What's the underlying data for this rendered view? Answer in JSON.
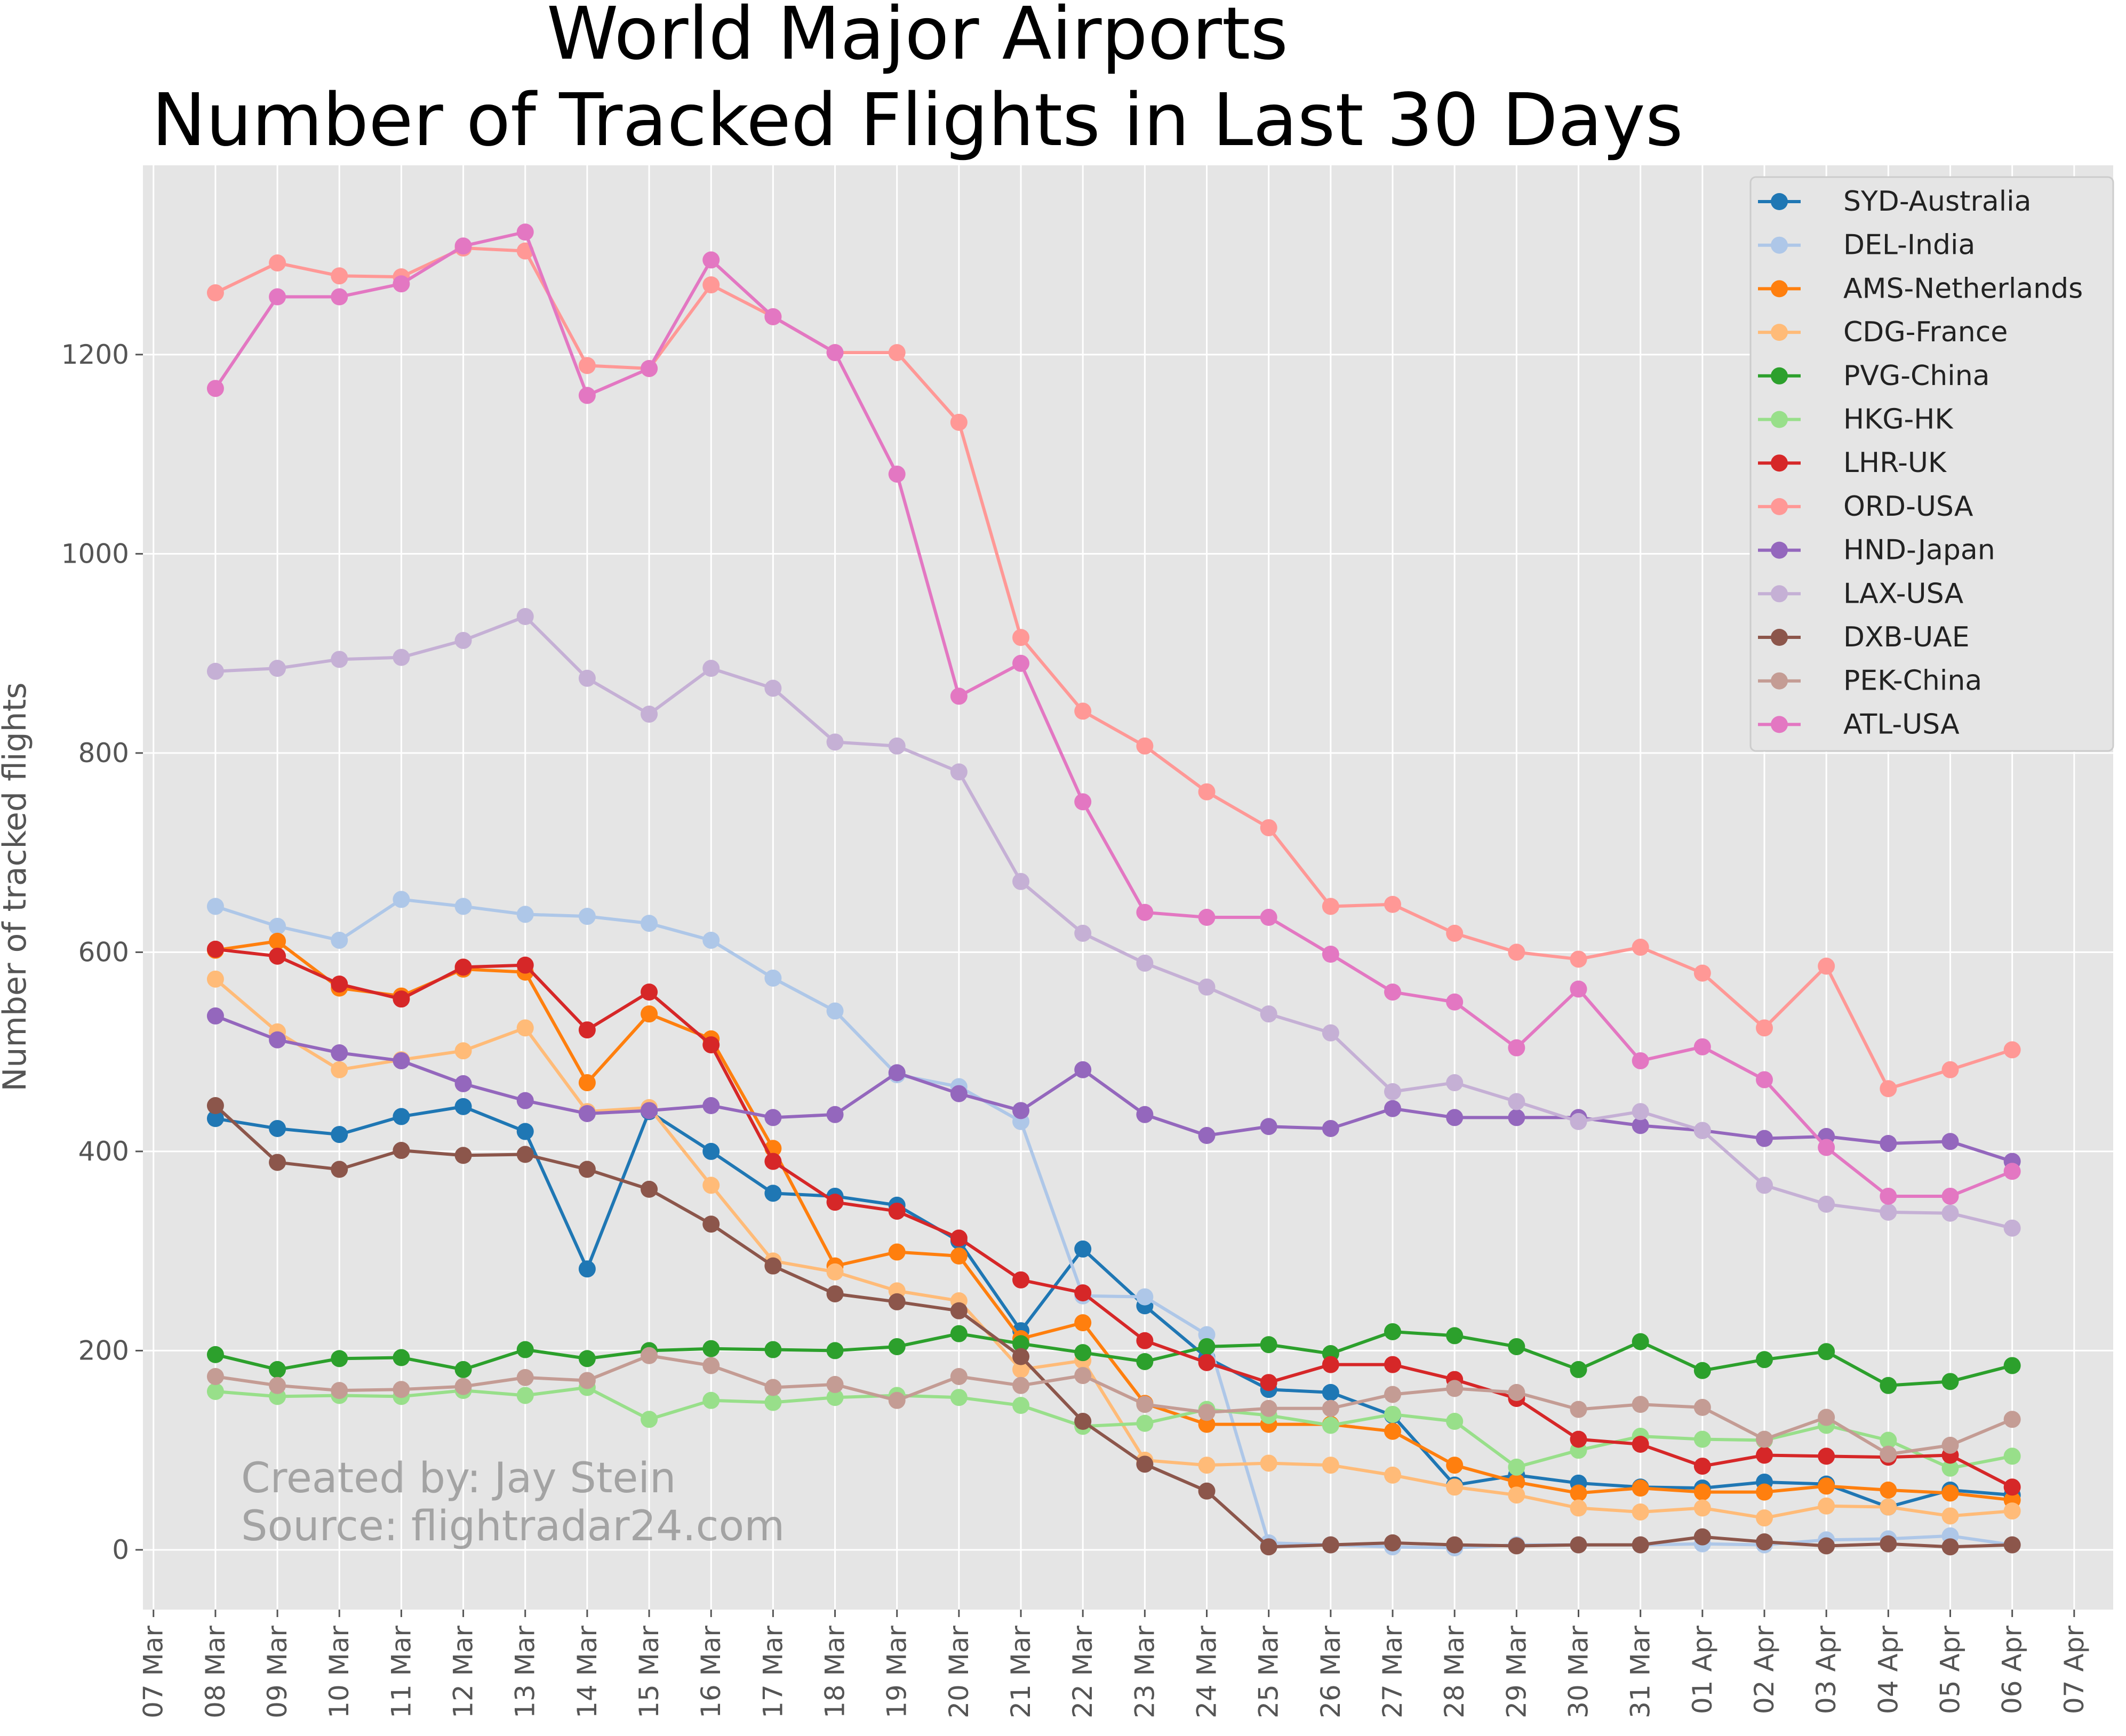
{
  "chart_data": {
    "type": "line",
    "title": [
      "World Major Airports",
      "Number of Tracked Flights in Last 30 Days"
    ],
    "xlabel": "",
    "ylabel": "Number of tracked flights",
    "xlim": [
      "07 Mar",
      "07 Apr"
    ],
    "ylim": [
      -60,
      1390
    ],
    "x_ticks": [
      "07 Mar",
      "08 Mar",
      "09 Mar",
      "10 Mar",
      "11 Mar",
      "12 Mar",
      "13 Mar",
      "14 Mar",
      "15 Mar",
      "16 Mar",
      "17 Mar",
      "18 Mar",
      "19 Mar",
      "20 Mar",
      "21 Mar",
      "22 Mar",
      "23 Mar",
      "24 Mar",
      "25 Mar",
      "26 Mar",
      "27 Mar",
      "28 Mar",
      "29 Mar",
      "30 Mar",
      "31 Mar",
      "01 Apr",
      "02 Apr",
      "03 Apr",
      "04 Apr",
      "05 Apr",
      "06 Apr",
      "07 Apr"
    ],
    "y_ticks": [
      0,
      200,
      400,
      600,
      800,
      1000,
      1200
    ],
    "x": [
      "08 Mar",
      "09 Mar",
      "10 Mar",
      "11 Mar",
      "12 Mar",
      "13 Mar",
      "14 Mar",
      "15 Mar",
      "16 Mar",
      "17 Mar",
      "18 Mar",
      "19 Mar",
      "20 Mar",
      "21 Mar",
      "22 Mar",
      "23 Mar",
      "24 Mar",
      "25 Mar",
      "26 Mar",
      "27 Mar",
      "28 Mar",
      "29 Mar",
      "30 Mar",
      "31 Mar",
      "01 Apr",
      "02 Apr",
      "03 Apr",
      "04 Apr",
      "05 Apr",
      "06 Apr"
    ],
    "grid": true,
    "legend_position": "top-right",
    "series": [
      {
        "name": "SYD-Australia",
        "color": "#1f77b4",
        "values": [
          433,
          423,
          417,
          435,
          445,
          420,
          282,
          440,
          400,
          358,
          355,
          346,
          310,
          220,
          302,
          245,
          193,
          161,
          158,
          135,
          65,
          75,
          67,
          63,
          62,
          68,
          66,
          43,
          60,
          55
        ]
      },
      {
        "name": "DEL-India",
        "color": "#aec7e8",
        "values": [
          646,
          626,
          612,
          653,
          646,
          638,
          636,
          629,
          612,
          574,
          541,
          477,
          465,
          430,
          255,
          254,
          216,
          7,
          5,
          3,
          2,
          5,
          5,
          5,
          6,
          5,
          10,
          11,
          14,
          5
        ]
      },
      {
        "name": "AMS-Netherlands",
        "color": "#ff7f0e",
        "values": [
          602,
          611,
          564,
          556,
          583,
          580,
          469,
          538,
          513,
          403,
          285,
          299,
          295,
          212,
          228,
          147,
          126,
          126,
          126,
          119,
          85,
          68,
          57,
          62,
          58,
          58,
          64,
          60,
          57,
          50
        ]
      },
      {
        "name": "CDG-France",
        "color": "#ffbb78",
        "values": [
          573,
          520,
          482,
          492,
          501,
          524,
          440,
          444,
          366,
          290,
          279,
          260,
          250,
          181,
          190,
          90,
          85,
          87,
          85,
          75,
          63,
          55,
          42,
          38,
          42,
          32,
          44,
          43,
          34,
          39
        ]
      },
      {
        "name": "PVG-China",
        "color": "#2ca02c",
        "values": [
          196,
          181,
          192,
          193,
          181,
          201,
          192,
          200,
          202,
          201,
          200,
          204,
          217,
          207,
          198,
          189,
          204,
          206,
          197,
          219,
          215,
          204,
          181,
          209,
          180,
          191,
          199,
          165,
          169,
          185
        ]
      },
      {
        "name": "HKG-HK",
        "color": "#98df8a",
        "values": [
          159,
          154,
          155,
          154,
          160,
          155,
          163,
          131,
          150,
          148,
          153,
          155,
          153,
          145,
          124,
          127,
          141,
          135,
          125,
          136,
          129,
          83,
          100,
          114,
          111,
          110,
          125,
          110,
          82,
          94
        ]
      },
      {
        "name": "LHR-UK",
        "color": "#d62728",
        "values": [
          603,
          596,
          568,
          553,
          585,
          587,
          522,
          560,
          507,
          390,
          349,
          340,
          313,
          271,
          258,
          210,
          188,
          168,
          186,
          186,
          171,
          152,
          111,
          106,
          84,
          95,
          94,
          93,
          95,
          63
        ]
      },
      {
        "name": "ORD-USA",
        "color": "#ff9896",
        "values": [
          1262,
          1292,
          1279,
          1278,
          1307,
          1304,
          1189,
          1186,
          1270,
          1238,
          1202,
          1202,
          1132,
          916,
          842,
          807,
          761,
          725,
          646,
          648,
          619,
          600,
          593,
          605,
          579,
          524,
          586,
          463,
          482,
          502
        ]
      },
      {
        "name": "HND-Japan",
        "color": "#9467bd",
        "values": [
          536,
          512,
          499,
          491,
          468,
          451,
          438,
          441,
          446,
          434,
          437,
          479,
          458,
          441,
          482,
          437,
          416,
          425,
          423,
          443,
          434,
          434,
          434,
          426,
          421,
          413,
          415,
          408,
          410,
          390
        ]
      },
      {
        "name": "LAX-USA",
        "color": "#c5b0d5",
        "values": [
          882,
          885,
          894,
          896,
          913,
          937,
          875,
          839,
          885,
          865,
          811,
          807,
          781,
          671,
          619,
          589,
          565,
          538,
          519,
          460,
          469,
          450,
          430,
          440,
          421,
          366,
          347,
          339,
          338,
          323
        ]
      },
      {
        "name": "DXB-UAE",
        "color": "#8c564b",
        "values": [
          446,
          389,
          382,
          401,
          396,
          397,
          382,
          362,
          327,
          285,
          257,
          249,
          240,
          194,
          129,
          86,
          59,
          3,
          5,
          7,
          5,
          4,
          5,
          5,
          13,
          8,
          4,
          6,
          3,
          5
        ]
      },
      {
        "name": "PEK-China",
        "color": "#c49c94",
        "values": [
          174,
          165,
          160,
          161,
          164,
          173,
          170,
          195,
          185,
          163,
          166,
          150,
          174,
          165,
          175,
          146,
          138,
          142,
          142,
          156,
          162,
          158,
          141,
          146,
          143,
          111,
          133,
          96,
          105,
          131
        ]
      },
      {
        "name": "ATL-USA",
        "color": "#e377c2",
        "values": [
          1166,
          1258,
          1258,
          1271,
          1309,
          1323,
          1159,
          1186,
          1295,
          1238,
          1202,
          1080,
          857,
          890,
          751,
          640,
          635,
          635,
          598,
          560,
          550,
          504,
          563,
          491,
          505,
          472,
          404,
          355,
          355,
          380
        ]
      }
    ],
    "annotations": [
      "Created by: Jay Stein",
      "Source: flightradar24.com"
    ]
  }
}
